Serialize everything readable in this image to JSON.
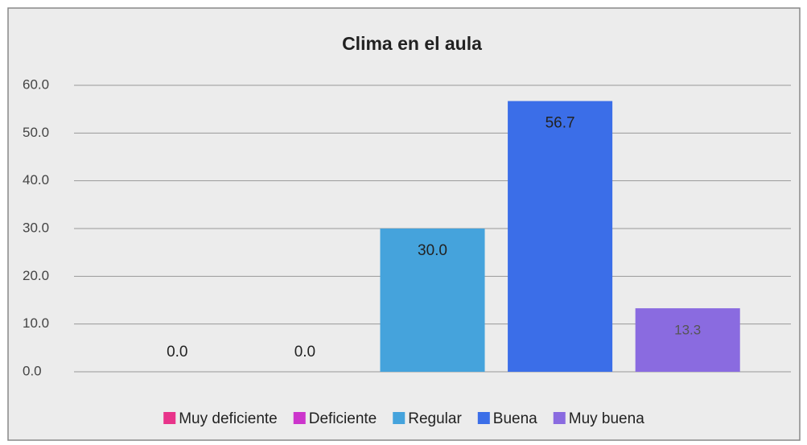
{
  "chart_data": {
    "type": "bar",
    "title": "Clima en el aula",
    "categories": [
      null
    ],
    "series": [
      {
        "name": "Muy deficiente",
        "color": "#e8348a",
        "values": [
          0
        ],
        "value_labels": [
          "0.0"
        ]
      },
      {
        "name": "Deficiente",
        "color": "#cc35cc",
        "values": [
          0
        ],
        "value_labels": [
          "0.0"
        ]
      },
      {
        "name": "Regular",
        "color": "#45a3dc",
        "values": [
          30
        ],
        "value_labels": [
          "30.0"
        ]
      },
      {
        "name": "Buena",
        "color": "#3b6ee8",
        "values": [
          56.7
        ],
        "value_labels": [
          "56.7"
        ]
      },
      {
        "name": "Muy buena",
        "color": "#8a6be0",
        "values": [
          13.3
        ],
        "value_labels": [
          "13.3"
        ]
      }
    ],
    "ylim": [
      0,
      60
    ],
    "yticks": [
      {
        "value": 0,
        "label": "0.0"
      },
      {
        "value": 10,
        "label": "10.0"
      },
      {
        "value": 20,
        "label": "20.0"
      },
      {
        "value": 30,
        "label": "30.0"
      },
      {
        "value": 40,
        "label": "40.0"
      },
      {
        "value": 50,
        "label": "50.0"
      },
      {
        "value": 60,
        "label": "60.0"
      }
    ],
    "grid": true,
    "legend": "bottom"
  }
}
